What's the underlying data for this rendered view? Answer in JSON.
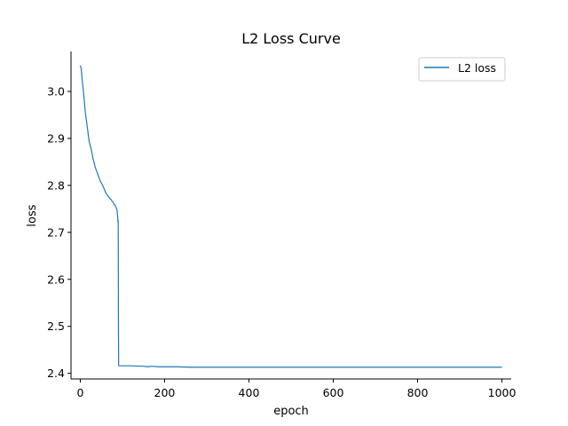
{
  "chart_data": {
    "type": "line",
    "title": "L2 Loss Curve",
    "xlabel": "epoch",
    "ylabel": "loss",
    "xlim": [
      -22,
      1022
    ],
    "ylim": [
      2.388,
      3.085
    ],
    "xticks": [
      0,
      200,
      400,
      600,
      800,
      1000
    ],
    "xtick_labels": [
      "0",
      "200",
      "400",
      "600",
      "800",
      "1000"
    ],
    "yticks": [
      2.4,
      2.5,
      2.6,
      2.7,
      2.8,
      2.9,
      3.0
    ],
    "ytick_labels": [
      "2.4",
      "2.5",
      "2.6",
      "2.7",
      "2.8",
      "2.9",
      "3.0"
    ],
    "grid": false,
    "legend_position": "top-right",
    "series": [
      {
        "name": "L2 loss",
        "color": "#1f77b4",
        "x": [
          0,
          2,
          5,
          8,
          10,
          12,
          15,
          18,
          20,
          22,
          25,
          28,
          30,
          33,
          35,
          38,
          40,
          43,
          45,
          48,
          50,
          53,
          55,
          58,
          60,
          63,
          65,
          68,
          70,
          73,
          75,
          78,
          80,
          83,
          85,
          87,
          88,
          89,
          89.5,
          90,
          90.5,
          91,
          92,
          100,
          120,
          150,
          160,
          170,
          185,
          200,
          230,
          260,
          280,
          300,
          320,
          350,
          400,
          450,
          500,
          600,
          700,
          800,
          900,
          1000
        ],
        "y": [
          3.055,
          3.05,
          3.02,
          2.995,
          2.975,
          2.955,
          2.935,
          2.915,
          2.9,
          2.89,
          2.88,
          2.868,
          2.858,
          2.848,
          2.84,
          2.832,
          2.828,
          2.82,
          2.815,
          2.808,
          2.805,
          2.8,
          2.796,
          2.79,
          2.785,
          2.781,
          2.778,
          2.775,
          2.772,
          2.77,
          2.767,
          2.764,
          2.76,
          2.757,
          2.753,
          2.748,
          2.74,
          2.73,
          2.722,
          2.725,
          2.5,
          2.417,
          2.416,
          2.416,
          2.416,
          2.415,
          2.414,
          2.415,
          2.414,
          2.414,
          2.414,
          2.413,
          2.413,
          2.413,
          2.413,
          2.413,
          2.413,
          2.413,
          2.413,
          2.413,
          2.413,
          2.413,
          2.413,
          2.413
        ]
      }
    ]
  }
}
